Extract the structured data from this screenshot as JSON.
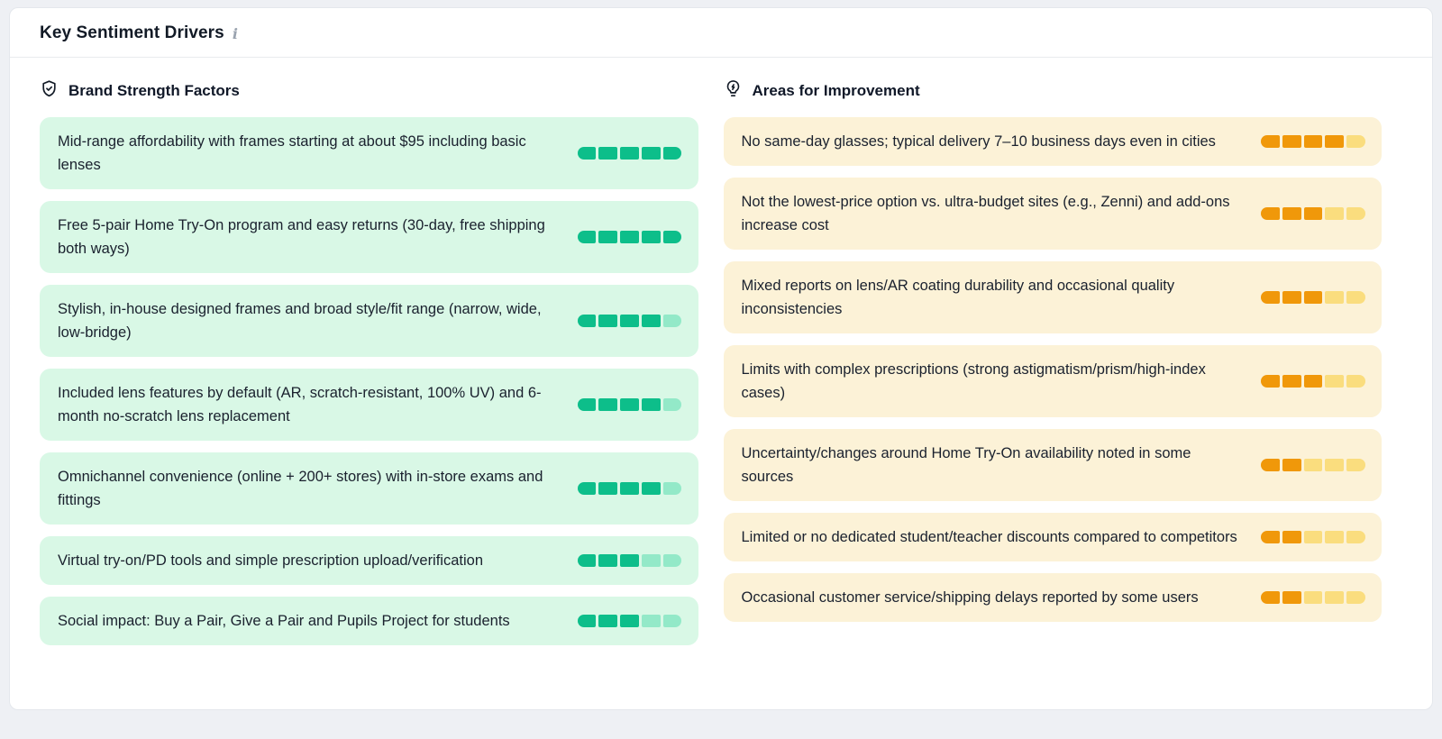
{
  "panel": {
    "title": "Key Sentiment Drivers",
    "info_glyph": "i"
  },
  "icons": {
    "title_info": "info-icon",
    "strengths": "shield-check-icon",
    "improvements": "lightbulb-bolt-icon"
  },
  "colors": {
    "page_bg": "#eef0f4",
    "panel_bg": "#ffffff",
    "panel_border": "#e4e7ec",
    "text": "#1a212e",
    "positive_card_bg": "#d9f8e6",
    "positive_fill": "#0dbe8a",
    "positive_empty": "#93e9c8",
    "negative_card_bg": "#fcf2d7",
    "negative_fill": "#f0980a",
    "negative_empty": "#fadd7e"
  },
  "columns": [
    {
      "id": "strengths",
      "heading": "Brand Strength Factors",
      "icon": "shield-check-icon",
      "items": [
        {
          "text": "Mid-range affordability with frames starting at about $95 including basic lenses",
          "score": 5,
          "max": 5
        },
        {
          "text": "Free 5-pair Home Try-On program and easy returns (30-day, free shipping both ways)",
          "score": 5,
          "max": 5
        },
        {
          "text": "Stylish, in-house designed frames and broad style/fit range (narrow, wide, low-bridge)",
          "score": 4,
          "max": 5
        },
        {
          "text": "Included lens features by default (AR, scratch-resistant, 100% UV) and 6-month no-scratch lens replacement",
          "score": 4,
          "max": 5
        },
        {
          "text": "Omnichannel convenience (online + 200+ stores) with in-store exams and fittings",
          "score": 4,
          "max": 5
        },
        {
          "text": "Virtual try-on/PD tools and simple prescription upload/verification",
          "score": 3,
          "max": 5
        },
        {
          "text": "Social impact: Buy a Pair, Give a Pair and Pupils Project for students",
          "score": 3,
          "max": 5
        }
      ]
    },
    {
      "id": "improvements",
      "heading": "Areas for Improvement",
      "icon": "lightbulb-bolt-icon",
      "items": [
        {
          "text": "No same-day glasses; typical delivery 7–10 business days even in cities",
          "score": 4,
          "max": 5
        },
        {
          "text": "Not the lowest-price option vs. ultra-budget sites (e.g., Zenni) and add-ons increase cost",
          "score": 3,
          "max": 5
        },
        {
          "text": "Mixed reports on lens/AR coating durability and occasional quality inconsistencies",
          "score": 3,
          "max": 5
        },
        {
          "text": "Limits with complex prescriptions (strong astigmatism/prism/high-index cases)",
          "score": 3,
          "max": 5
        },
        {
          "text": "Uncertainty/changes around Home Try-On availability noted in some sources",
          "score": 2,
          "max": 5
        },
        {
          "text": "Limited or no dedicated student/teacher discounts compared to competitors",
          "score": 2,
          "max": 5
        },
        {
          "text": "Occasional customer service/shipping delays reported by some users",
          "score": 2,
          "max": 5
        }
      ]
    }
  ]
}
